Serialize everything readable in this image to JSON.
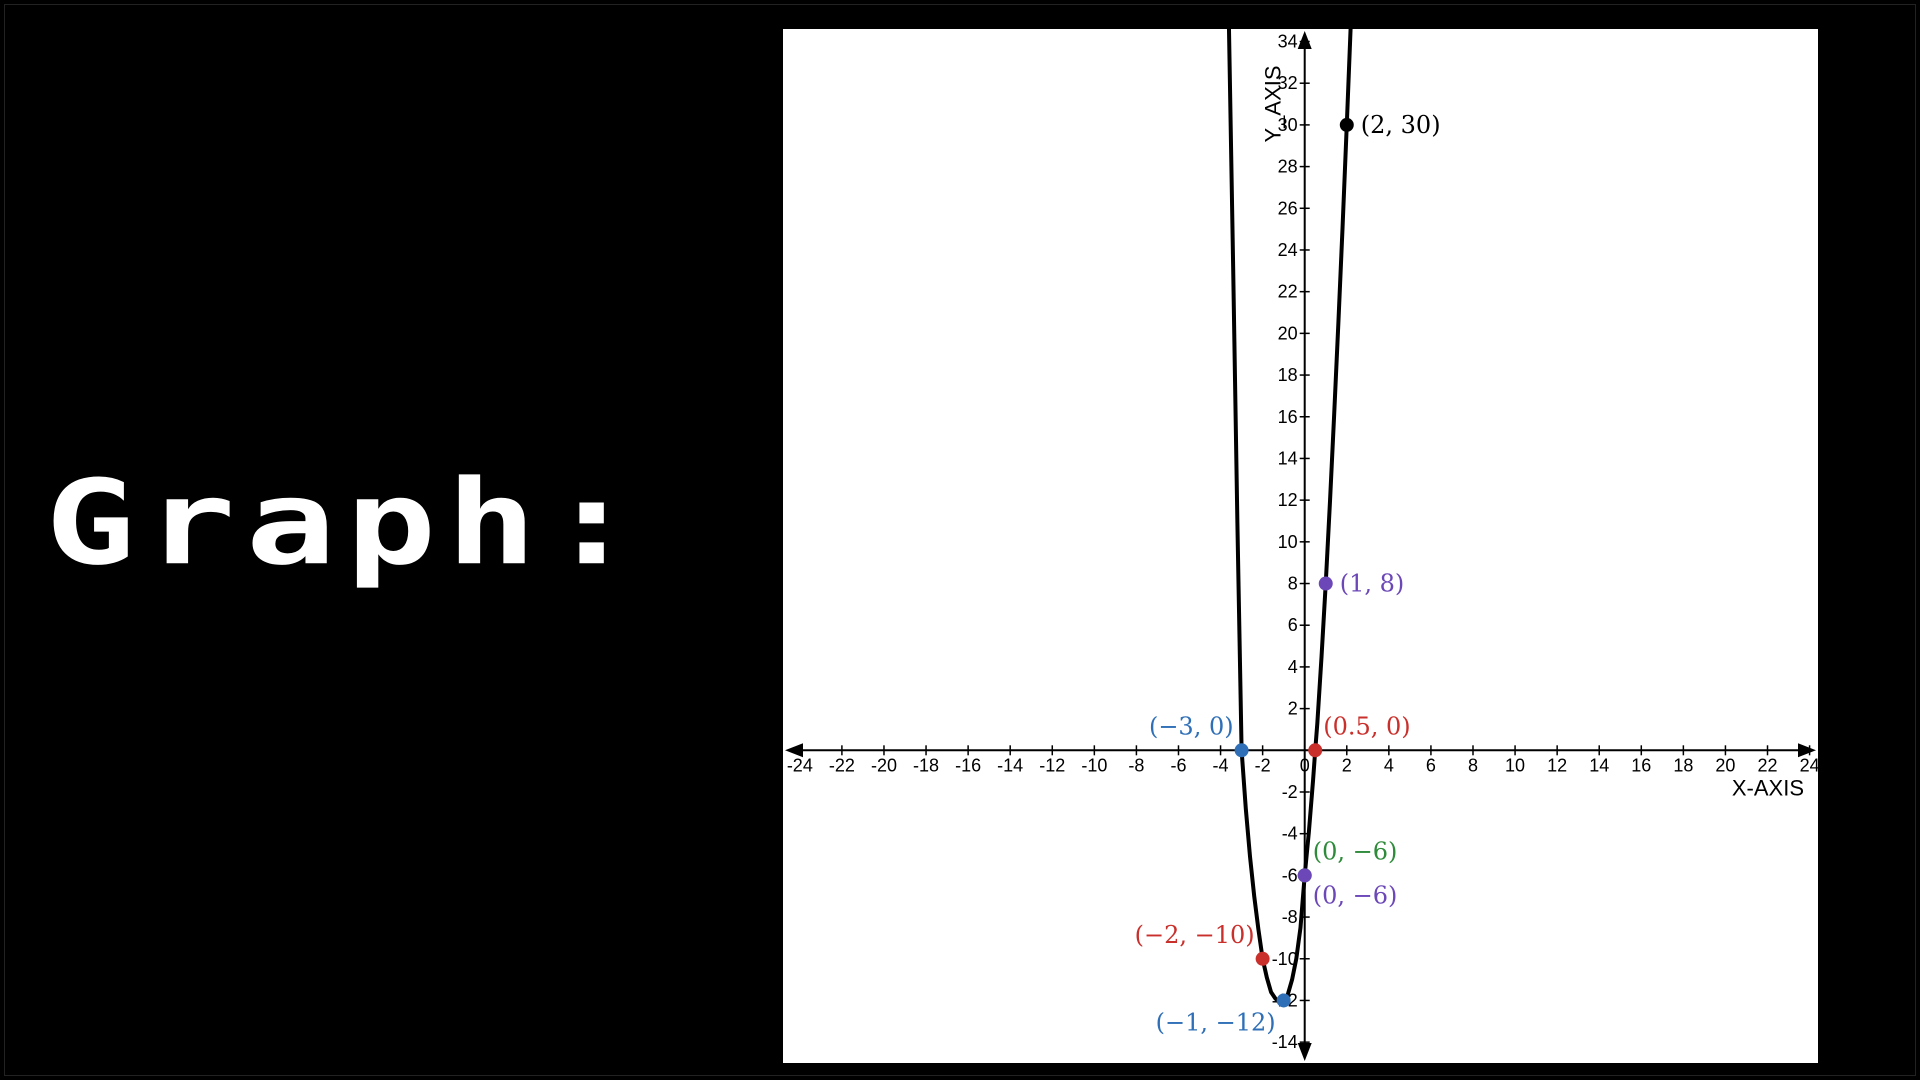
{
  "heading": "Graph:",
  "chart_data": {
    "type": "line",
    "title": "",
    "xlabel": "X-AXIS",
    "ylabel": "Y_AXIS",
    "xlim": [
      -24.8,
      24.4
    ],
    "ylim": [
      -15,
      34.6
    ],
    "x_ticks": [
      -24,
      -22,
      -20,
      -18,
      -16,
      -14,
      -12,
      -10,
      -8,
      -6,
      -4,
      -2,
      0,
      2,
      4,
      6,
      8,
      10,
      12,
      14,
      16,
      18,
      20,
      22,
      24
    ],
    "y_ticks": [
      -14,
      -12,
      -10,
      -8,
      -6,
      -4,
      -2,
      2,
      4,
      6,
      8,
      10,
      12,
      14,
      16,
      18,
      20,
      22,
      24,
      26,
      28,
      30,
      32,
      34
    ],
    "grid": false,
    "series": [
      {
        "color": "#000000",
        "x": [
          -3.6,
          -3.4,
          -3.2,
          -3.0,
          -2.8,
          -2.6,
          -2.4,
          -2.2,
          -2.0,
          -1.8,
          -1.6,
          -1.4,
          -1.2,
          -1.0,
          -0.8,
          -0.6,
          -0.4,
          -0.2,
          0.0,
          0.2,
          0.4,
          0.5,
          0.6,
          0.8,
          1.0,
          1.2,
          1.4,
          1.6,
          1.8,
          2.0,
          2.2
        ],
        "y": [
          34.6,
          23.1,
          10.9,
          0,
          -2.8,
          -5.1,
          -7.0,
          -8.6,
          -10,
          -10.9,
          -11.6,
          -11.9,
          -12.1,
          -12,
          -11.7,
          -11.0,
          -10.0,
          -8.5,
          -6,
          -3.9,
          -1.4,
          0,
          1.3,
          4.5,
          8,
          11.9,
          16.1,
          20.5,
          25.1,
          30,
          35.1
        ]
      }
    ],
    "points": [
      {
        "x": 2,
        "y": 30,
        "label": "(2, 30)",
        "color": "#000000",
        "anchor": "right"
      },
      {
        "x": 1,
        "y": 8,
        "label": "(1, 8)",
        "color": "#6b47b8",
        "anchor": "right"
      },
      {
        "x": -3,
        "y": 0,
        "label": "(−3, 0)",
        "color": "#2f6fb7",
        "anchor": "upper-left"
      },
      {
        "x": 0.5,
        "y": 0,
        "label": "(0.5, 0)",
        "color": "#c9302c",
        "anchor": "upper-right"
      },
      {
        "x": 0,
        "y": -6,
        "label": "(0, −6)",
        "color": "#2e8b3a",
        "anchor": "upper-right"
      },
      {
        "x": 0,
        "y": -6,
        "label": "(0, −6)",
        "color": "#6b47b8",
        "anchor": "lower-right"
      },
      {
        "x": -2,
        "y": -10,
        "label": "(−2, −10)",
        "color": "#c9302c",
        "anchor": "upper-left"
      },
      {
        "x": -1,
        "y": -12,
        "label": "(−1, −12)",
        "color": "#2f6fb7",
        "anchor": "lower-left"
      }
    ]
  }
}
